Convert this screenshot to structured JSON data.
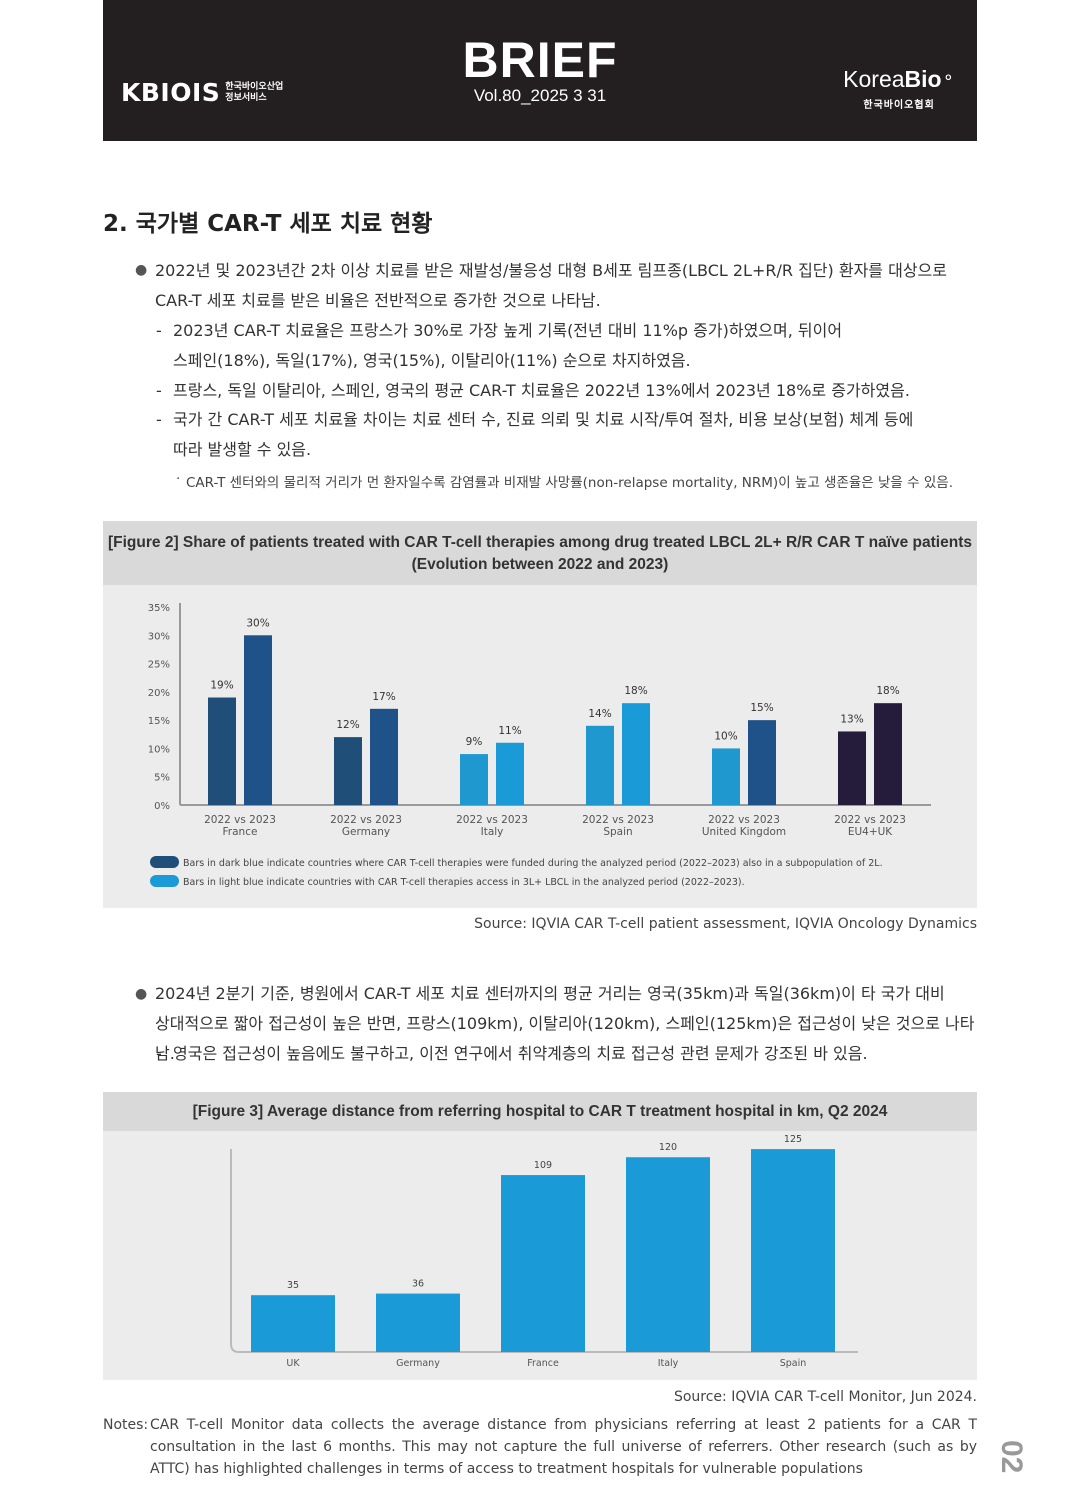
{
  "header": {
    "kbiois_logo": "KBIOIS",
    "kbiois_sub_line1": "한국바이오산업",
    "kbiois_sub_line2": "정보서비스",
    "title": "BRIEF",
    "volume": "Vol.80_2025 3 31",
    "koreabio_logo_a": "Korea",
    "koreabio_logo_b": "Bio",
    "koreabio_sub": "한국바이오협회"
  },
  "section": {
    "title": "2. 국가별 CAR-T 세포 치료 현황",
    "bullet1_line1": "2022년 및 2023년간 2차 이상 치료를 받은 재발성/불응성 대형 B세포 림프종(LBCL 2L+R/R 집단) 환자를 대상으로",
    "bullet1_line2": "CAR-T 세포 치료를 받은 비율은 전반적으로 증가한 것으로 나타남.",
    "dash1_line1": "2023년 CAR-T 치료율은 프랑스가 30%로 가장 높게 기록(전년 대비 11%p 증가)하였으며, 뒤이어",
    "dash1_line2": "스페인(18%), 독일(17%), 영국(15%), 이탈리아(11%) 순으로 차지하였음.",
    "dash2": "프랑스, 독일 이탈리아, 스페인, 영국의 평균 CAR-T 치료율은 2022년 13%에서 2023년 18%로 증가하였음.",
    "dash3_line1": "국가 간 CAR-T 세포 치료율 차이는 치료 센터 수, 진료 의뢰 및 치료 시작/투여 절차, 비용 보상(보험) 체계 등에",
    "dash3_line2": "따라 발생할 수 있음.",
    "note": "CAR-T 센터와의 물리적 거리가 먼 환자일수록 감염률과 비재발 사망률(non-relapse mortality, NRM)이 높고 생존율은 낮을 수 있음.",
    "bullet2_line1": "2024년 2분기 기준, 병원에서 CAR-T 세포 치료 센터까지의 평균 거리는 영국(35km)과 독일(36km)이 타 국가 대비",
    "bullet2_line2": "상대적으로 짧아 접근성이 높은 반면, 프랑스(109km), 이탈리아(120km), 스페인(125km)은 접근성이 낮은 것으로 나타남.",
    "dash4": "영국은 접근성이 높음에도 불구하고, 이전 연구에서 취약계층의 치료 접근성 관련 문제가 강조된 바 있음."
  },
  "figure2": {
    "title_line1": "[Figure 2] Share of patients treated with CAR T-cell therapies among drug treated LBCL 2L+ R/R CAR T naïve patients",
    "title_line2": "(Evolution between 2022 and 2023)",
    "source": "Source: IQVIA CAR T-cell patient assessment, IQVIA Oncology Dynamics"
  },
  "figure3": {
    "title": "[Figure 3] Average distance from referring hospital to CAR T treatment hospital in km, Q2 2024",
    "source": "Source: IQVIA CAR T-cell Monitor, Jun 2024."
  },
  "notes": {
    "label": "Notes:",
    "text": "CAR T-cell Monitor data collects the average distance from physicians referring at least 2 patients for a CAR T consultation in the last 6 months. This may not capture the full universe of referrers. Other research (such as by ATTC) has highlighted challenges in terms of access to treatment hospitals for vulnerable populations"
  },
  "page_number": "02",
  "chart_data": [
    {
      "type": "bar",
      "ylim": [
        0,
        35
      ],
      "y_ticks": [
        "0%",
        "5%",
        "10%",
        "15%",
        "20%",
        "25%",
        "30%",
        "35%"
      ],
      "categories": [
        "France",
        "Germany",
        "Italy",
        "Spain",
        "United Kingdom",
        "EU4+UK"
      ],
      "sub_label": "2022 vs 2023",
      "values_2022": [
        19,
        12,
        9,
        14,
        10,
        13
      ],
      "values_2023": [
        30,
        17,
        11,
        18,
        15,
        18
      ],
      "labels_2022": [
        "19%",
        "12%",
        "9%",
        "14%",
        "10%",
        "13%"
      ],
      "labels_2023": [
        "30%",
        "17%",
        "11%",
        "18%",
        "15%",
        "18%"
      ],
      "bar_colors": [
        "dark",
        "dark",
        "light",
        "light",
        "mixed",
        "eu"
      ],
      "colors": {
        "dark2022": "#1f4e79",
        "dark2023": "#1f5289",
        "light2022": "#1f97cf",
        "light2023": "#1a9ad6",
        "eu2022": "#241c3a",
        "eu2023": "#241c3a"
      },
      "legend": [
        {
          "label": "Bars in dark blue indicate countries where CAR T-cell therapies were funded during the analyzed period (2022–2023) also in a subpopulation of 2L.",
          "color": "#1f4e79"
        },
        {
          "label": "Bars in light blue indicate countries with CAR T-cell therapies access in 3L+ LBCL in the analyzed period (2022–2023).",
          "color": "#1a9ad6"
        }
      ],
      "grid": false
    },
    {
      "type": "bar",
      "ylim": [
        0,
        130
      ],
      "categories": [
        "UK",
        "Germany",
        "France",
        "Italy",
        "Spain"
      ],
      "values": [
        35,
        36,
        109,
        120,
        125
      ],
      "labels": [
        "35",
        "36",
        "109",
        "120",
        "125"
      ],
      "color": "#1a9ad6",
      "grid": false
    }
  ]
}
